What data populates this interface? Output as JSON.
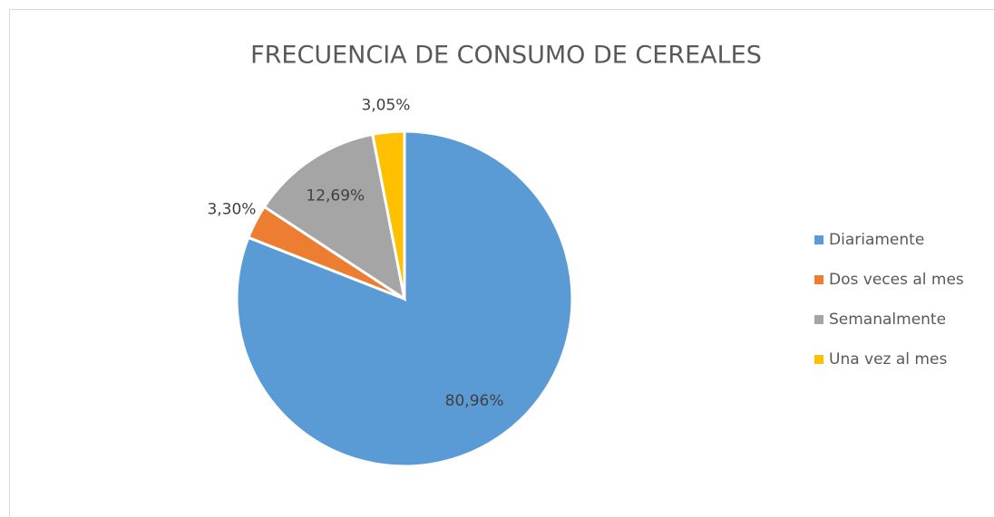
{
  "chart_data": {
    "type": "pie",
    "title": "FRECUENCIA DE CONSUMO DE CEREALES",
    "categories": [
      "Diariamente",
      "Dos veces al mes",
      "Semanalmente",
      "Una vez al mes"
    ],
    "values": [
      80.96,
      3.3,
      12.69,
      3.05
    ],
    "value_labels": [
      "80,96%",
      "3,30%",
      "12,69%",
      "3,05%"
    ],
    "colors": [
      "#5b9bd5",
      "#ed7d31",
      "#a5a5a5",
      "#ffc000"
    ],
    "legend": "right"
  }
}
